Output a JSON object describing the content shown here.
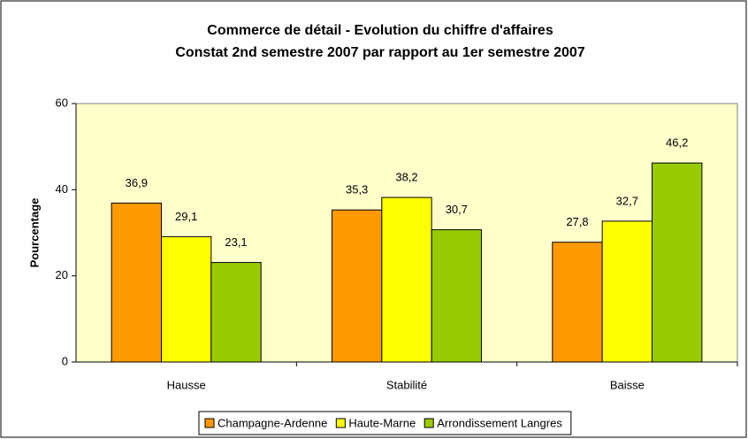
{
  "chart_data": {
    "type": "bar",
    "title": "Commerce de détail - Evolution du chiffre d'affaires",
    "subtitle": "Constat 2nd semestre 2007 par rapport au 1er semestre 2007",
    "y_label": "Pourcentage",
    "categories": [
      "Hausse",
      "Stabilité",
      "Baisse"
    ],
    "series": [
      {
        "name": "Champagne-Ardenne",
        "color": "#ff9900",
        "values": [
          36.9,
          35.3,
          27.8
        ],
        "value_labels": [
          "36,9",
          "35,3",
          "27,8"
        ]
      },
      {
        "name": "Haute-Marne",
        "color": "#ffff00",
        "values": [
          29.1,
          38.2,
          32.7
        ],
        "value_labels": [
          "29,1",
          "38,2",
          "32,7"
        ]
      },
      {
        "name": "Arrondissement Langres",
        "color": "#99cc00",
        "values": [
          23.1,
          30.7,
          46.2
        ],
        "value_labels": [
          "23,1",
          "30,7",
          "46,2"
        ]
      }
    ],
    "ylim": [
      0,
      60
    ],
    "yticks": [
      0,
      20,
      40,
      60
    ],
    "legend": "bottom",
    "plot_background": "#ffffcc"
  }
}
